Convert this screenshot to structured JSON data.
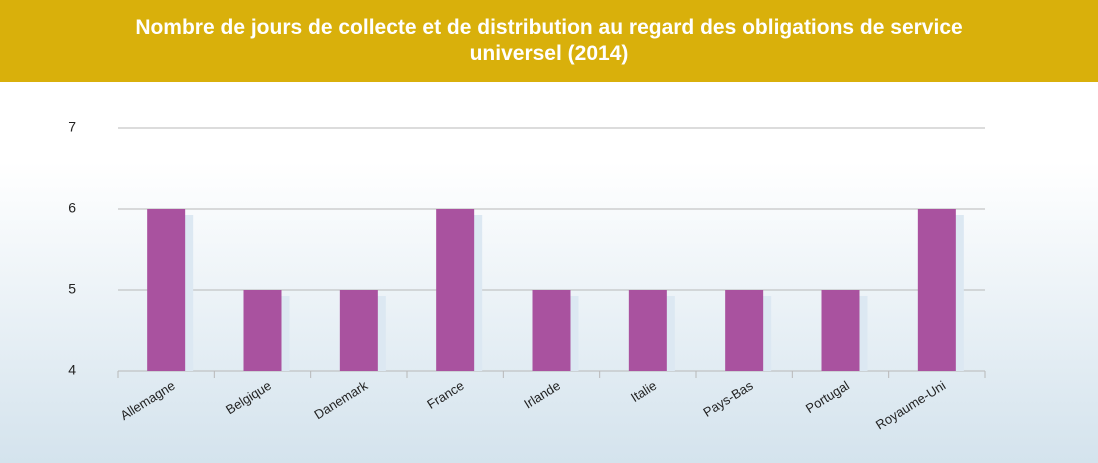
{
  "chart_data": {
    "type": "bar",
    "title": "Nombre de jours de collecte et de distribution au regard des obligations de service universel (2014)",
    "categories": [
      "Allemagne",
      "Belgique",
      "Danemark",
      "France",
      "Irlande",
      "Italie",
      "Pays-Bas",
      "Portugal",
      "Royaume-Uni"
    ],
    "values": [
      6,
      5,
      5,
      6,
      5,
      5,
      5,
      5,
      6
    ],
    "color": "#a9529f",
    "ylim": [
      4,
      7
    ],
    "yticks": [
      4,
      5,
      6,
      7
    ],
    "grid": true
  }
}
